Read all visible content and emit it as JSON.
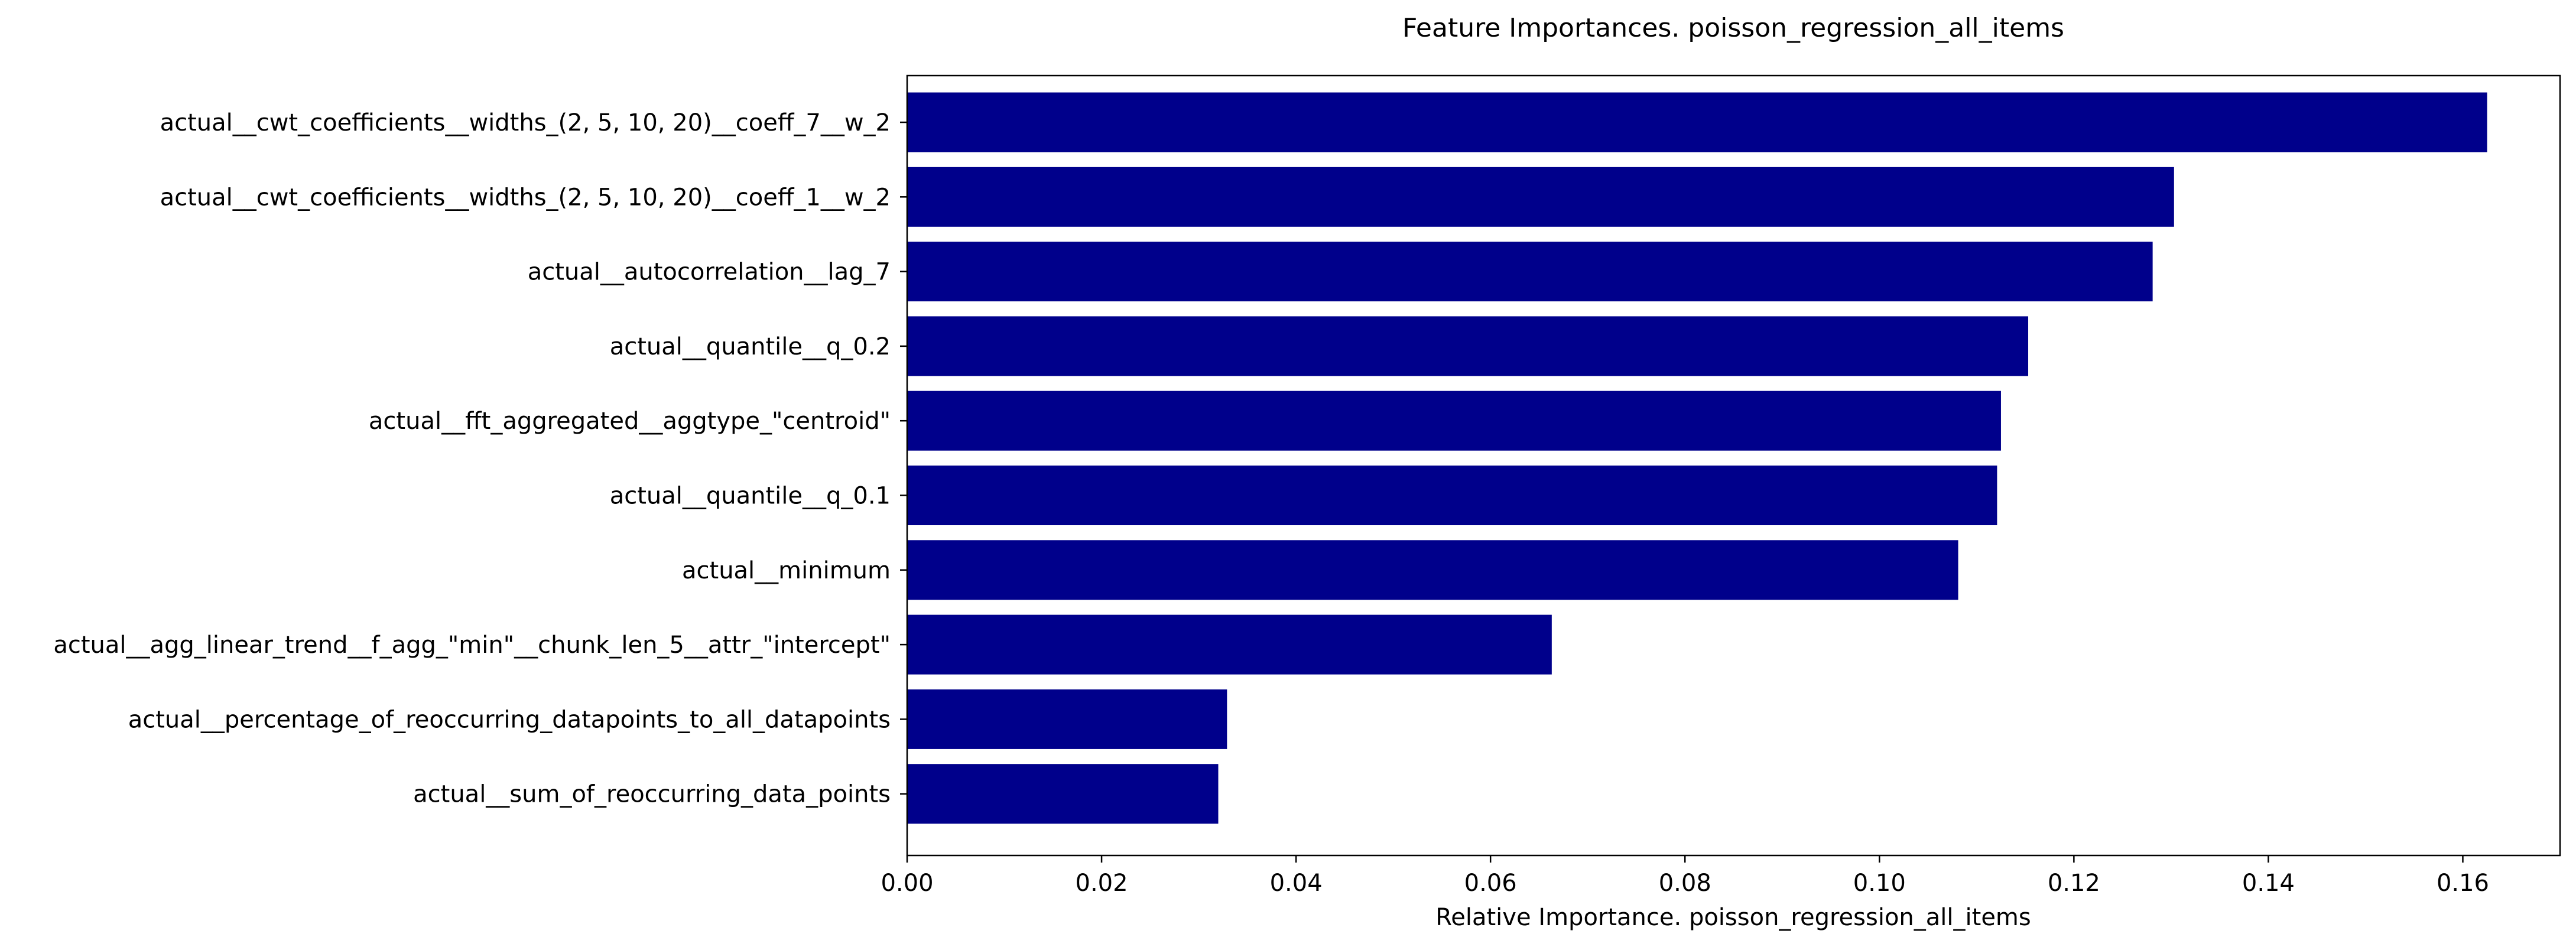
{
  "chart_data": {
    "type": "bar",
    "orientation": "horizontal",
    "title": "Feature Importances. poisson_regression_all_items",
    "xlabel": "Relative Importance. poisson_regression_all_items",
    "ylabel": "",
    "xlim": [
      0,
      0.17
    ],
    "xticks": [
      0.0,
      0.02,
      0.04,
      0.06,
      0.08,
      0.1,
      0.12,
      0.14,
      0.16
    ],
    "xtick_labels": [
      "0.00",
      "0.02",
      "0.04",
      "0.06",
      "0.08",
      "0.10",
      "0.12",
      "0.14",
      "0.16"
    ],
    "grid": false,
    "bar_color": "#00008b",
    "categories": [
      "actual__cwt_coefficients__widths_(2, 5, 10, 20)__coeff_7__w_2",
      "actual__cwt_coefficients__widths_(2, 5, 10, 20)__coeff_1__w_2",
      "actual__autocorrelation__lag_7",
      "actual__quantile__q_0.2",
      "actual__fft_aggregated__aggtype_\"centroid\"",
      "actual__quantile__q_0.1",
      "actual__minimum",
      "actual__agg_linear_trend__f_agg_\"min\"__chunk_len_5__attr_\"intercept\"",
      "actual__percentage_of_reoccurring_datapoints_to_all_datapoints",
      "actual__sum_of_reoccurring_data_points"
    ],
    "values": [
      0.1625,
      0.1303,
      0.1281,
      0.1153,
      0.1125,
      0.1121,
      0.1081,
      0.0663,
      0.0329,
      0.032
    ]
  }
}
